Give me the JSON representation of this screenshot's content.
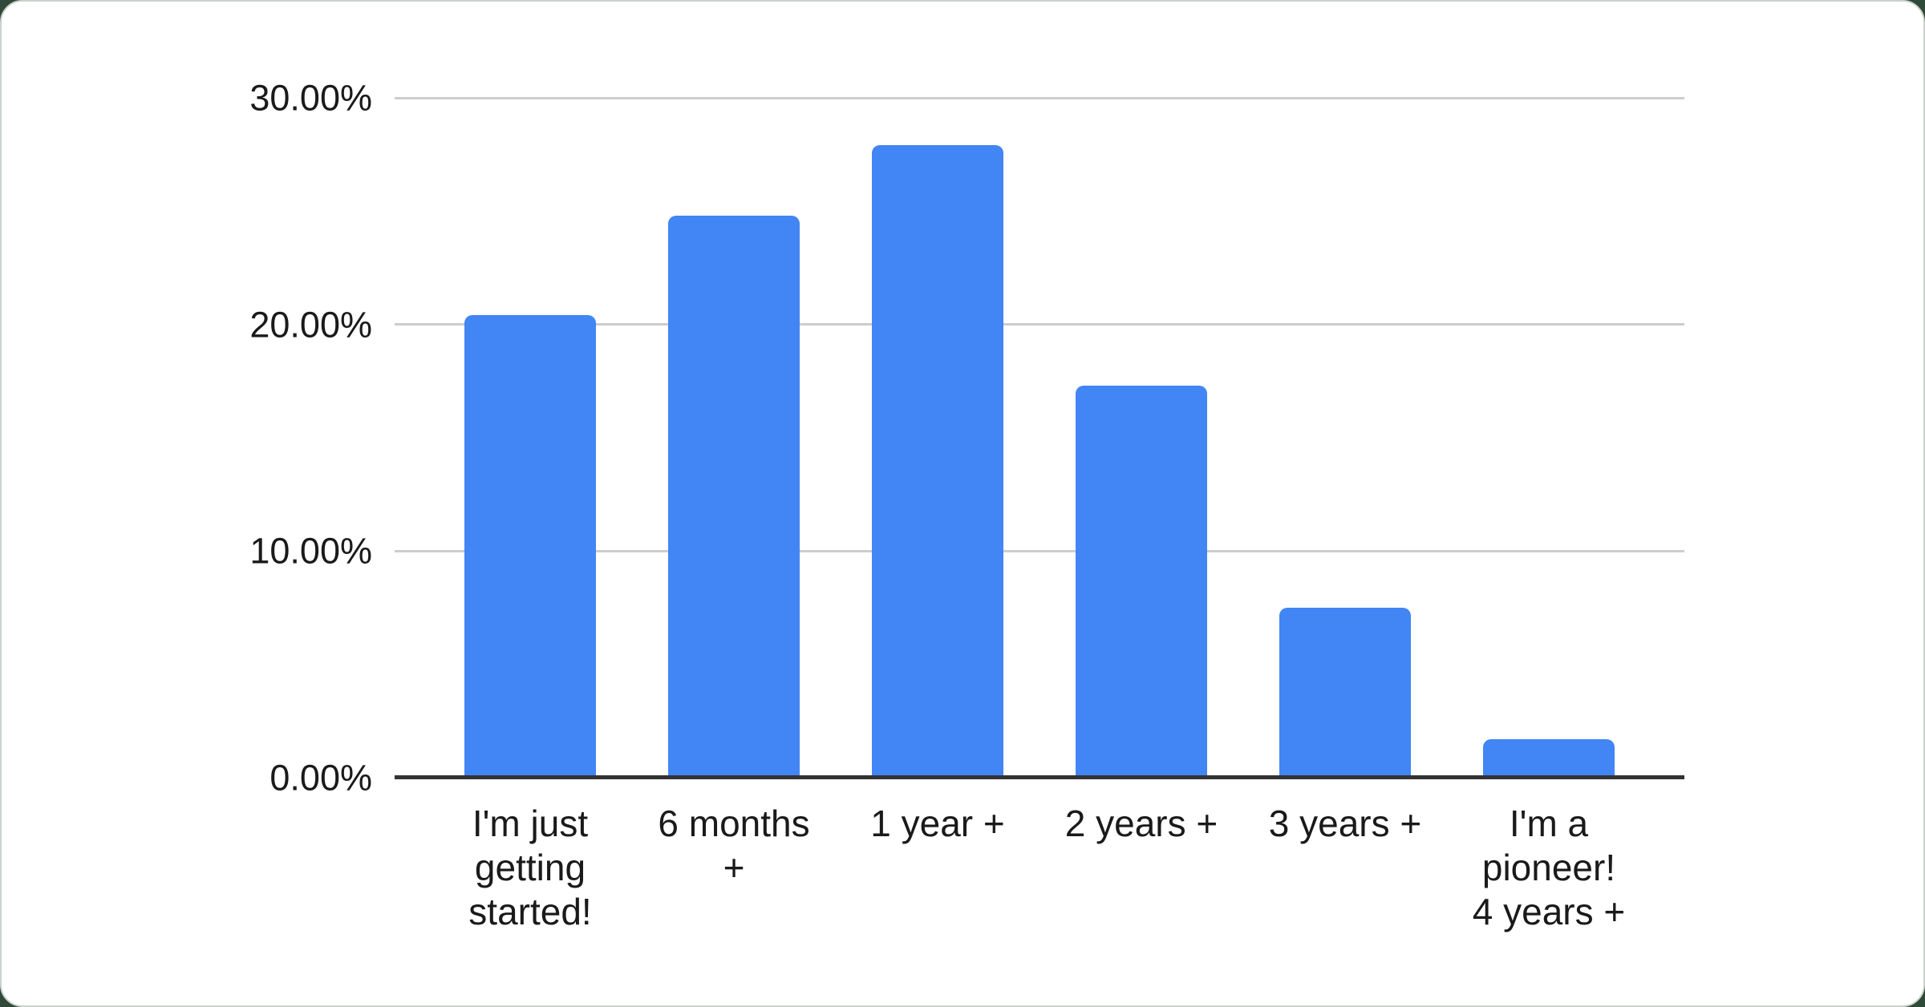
{
  "page": {
    "background_color": "#2f4a38",
    "card_color": "#ffffff"
  },
  "chart_data": {
    "type": "bar",
    "title": "",
    "xlabel": "",
    "ylabel": "",
    "categories": [
      "I'm just getting started!",
      "6 months +",
      "1 year +",
      "2 years +",
      "3 years +",
      "I'm a pioneer! 4 years +"
    ],
    "category_lines": [
      [
        "I'm just",
        "getting",
        "started!"
      ],
      [
        "6 months",
        "+"
      ],
      [
        "1 year +"
      ],
      [
        "2 years +"
      ],
      [
        "3 years +"
      ],
      [
        "I'm a",
        "pioneer!",
        "4 years +"
      ]
    ],
    "values": [
      20.4,
      24.8,
      27.9,
      17.3,
      7.5,
      1.7
    ],
    "unit": "%",
    "ylim": [
      0,
      30
    ],
    "y_ticks": [
      "0.00%",
      "10.00%",
      "20.00%",
      "30.00%"
    ],
    "y_tick_values": [
      0,
      10,
      20,
      30
    ],
    "grid": true,
    "legend": "none",
    "colors": {
      "bar": "#4285f4",
      "gridline": "#cdcdcd",
      "axis": "#333333",
      "label": "#1a1a1a"
    }
  }
}
